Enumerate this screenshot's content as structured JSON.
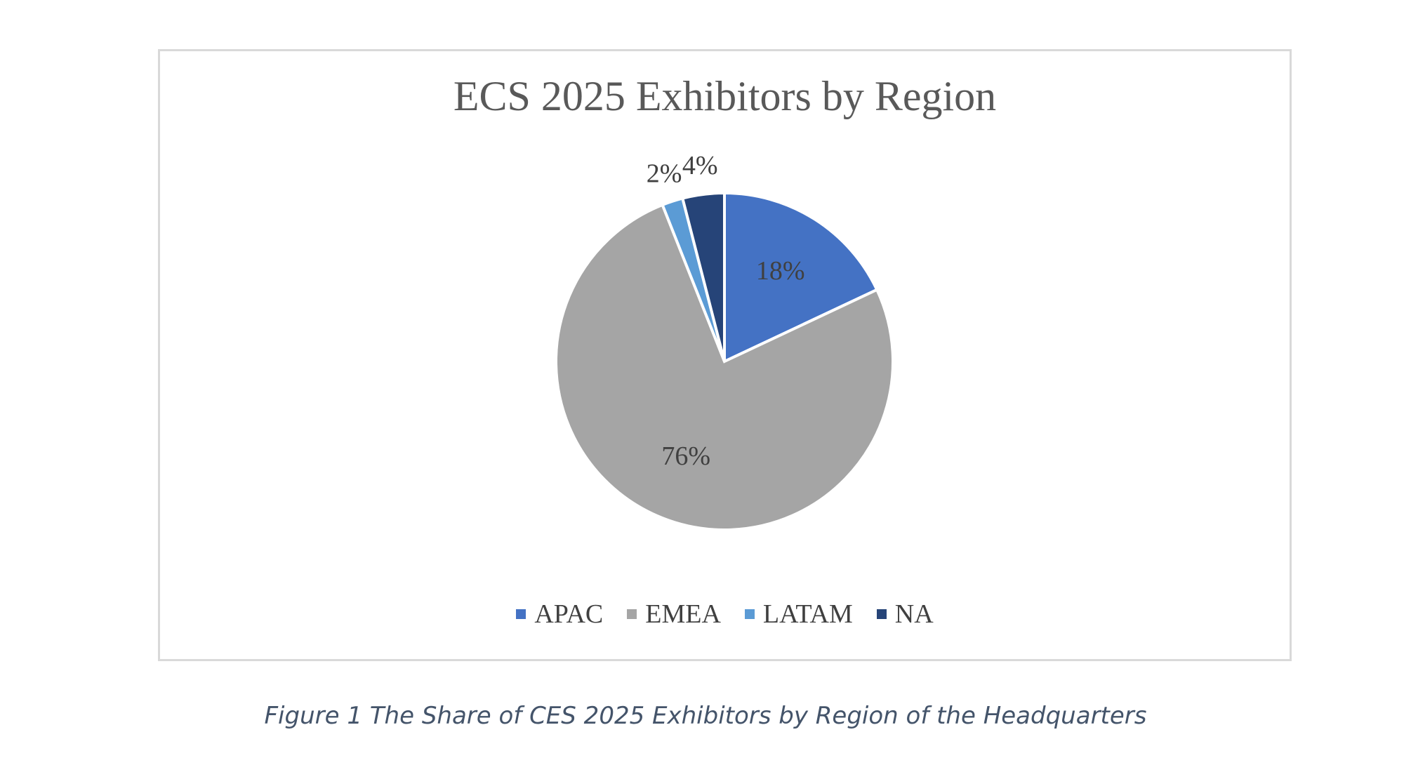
{
  "chart_data": {
    "type": "pie",
    "title": "ECS 2025 Exhibitors by Region",
    "categories": [
      "APAC",
      "EMEA",
      "LATAM",
      "NA"
    ],
    "values": [
      18,
      76,
      2,
      4
    ],
    "value_labels": [
      "18%",
      "76%",
      "2%",
      "4%"
    ],
    "colors": [
      "#4472c4",
      "#a5a5a5",
      "#5b9bd5",
      "#264478"
    ],
    "legend_position": "bottom"
  },
  "caption": "Figure 1 The Share of CES 2025 Exhibitors by Region of the Headquarters"
}
